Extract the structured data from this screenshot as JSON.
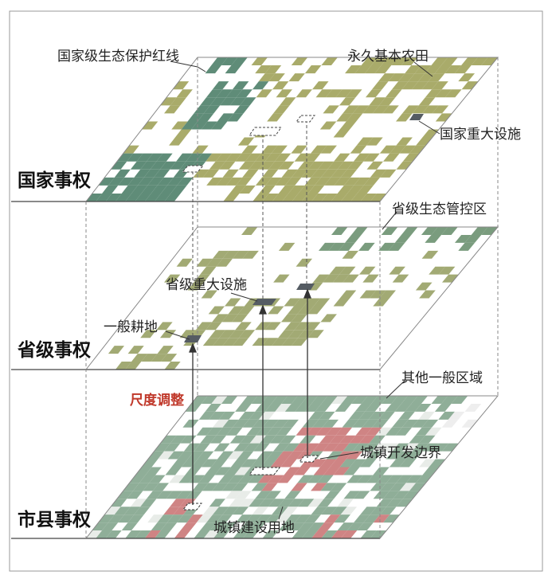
{
  "levels": {
    "national": "国家事权",
    "provincial": "省级事权",
    "municipal": "市县事权"
  },
  "labels": {
    "eco_redline": "国家级生态保护红线",
    "basic_farmland": "永久基本农田",
    "national_facility": "国家重大设施",
    "provincial_eco": "省级生态管控区",
    "provincial_facility": "省级重大设施",
    "general_farmland": "一般耕地",
    "scale_adjust": "尺度调整",
    "other_general": "其他一般区域",
    "urban_boundary": "城镇开发边界",
    "urban_construction": "城镇建设用地"
  },
  "colors": {
    "eco": "#5f8c78",
    "farm": "#a9ab6a",
    "prov_eco": "#7a9c7e",
    "prov_farm": "#a2aa74",
    "muni_green": "#8fae98",
    "urban": "#cf8484",
    "facility": "#555c63",
    "accent_red": "#c0392b",
    "frame": "#999999"
  }
}
